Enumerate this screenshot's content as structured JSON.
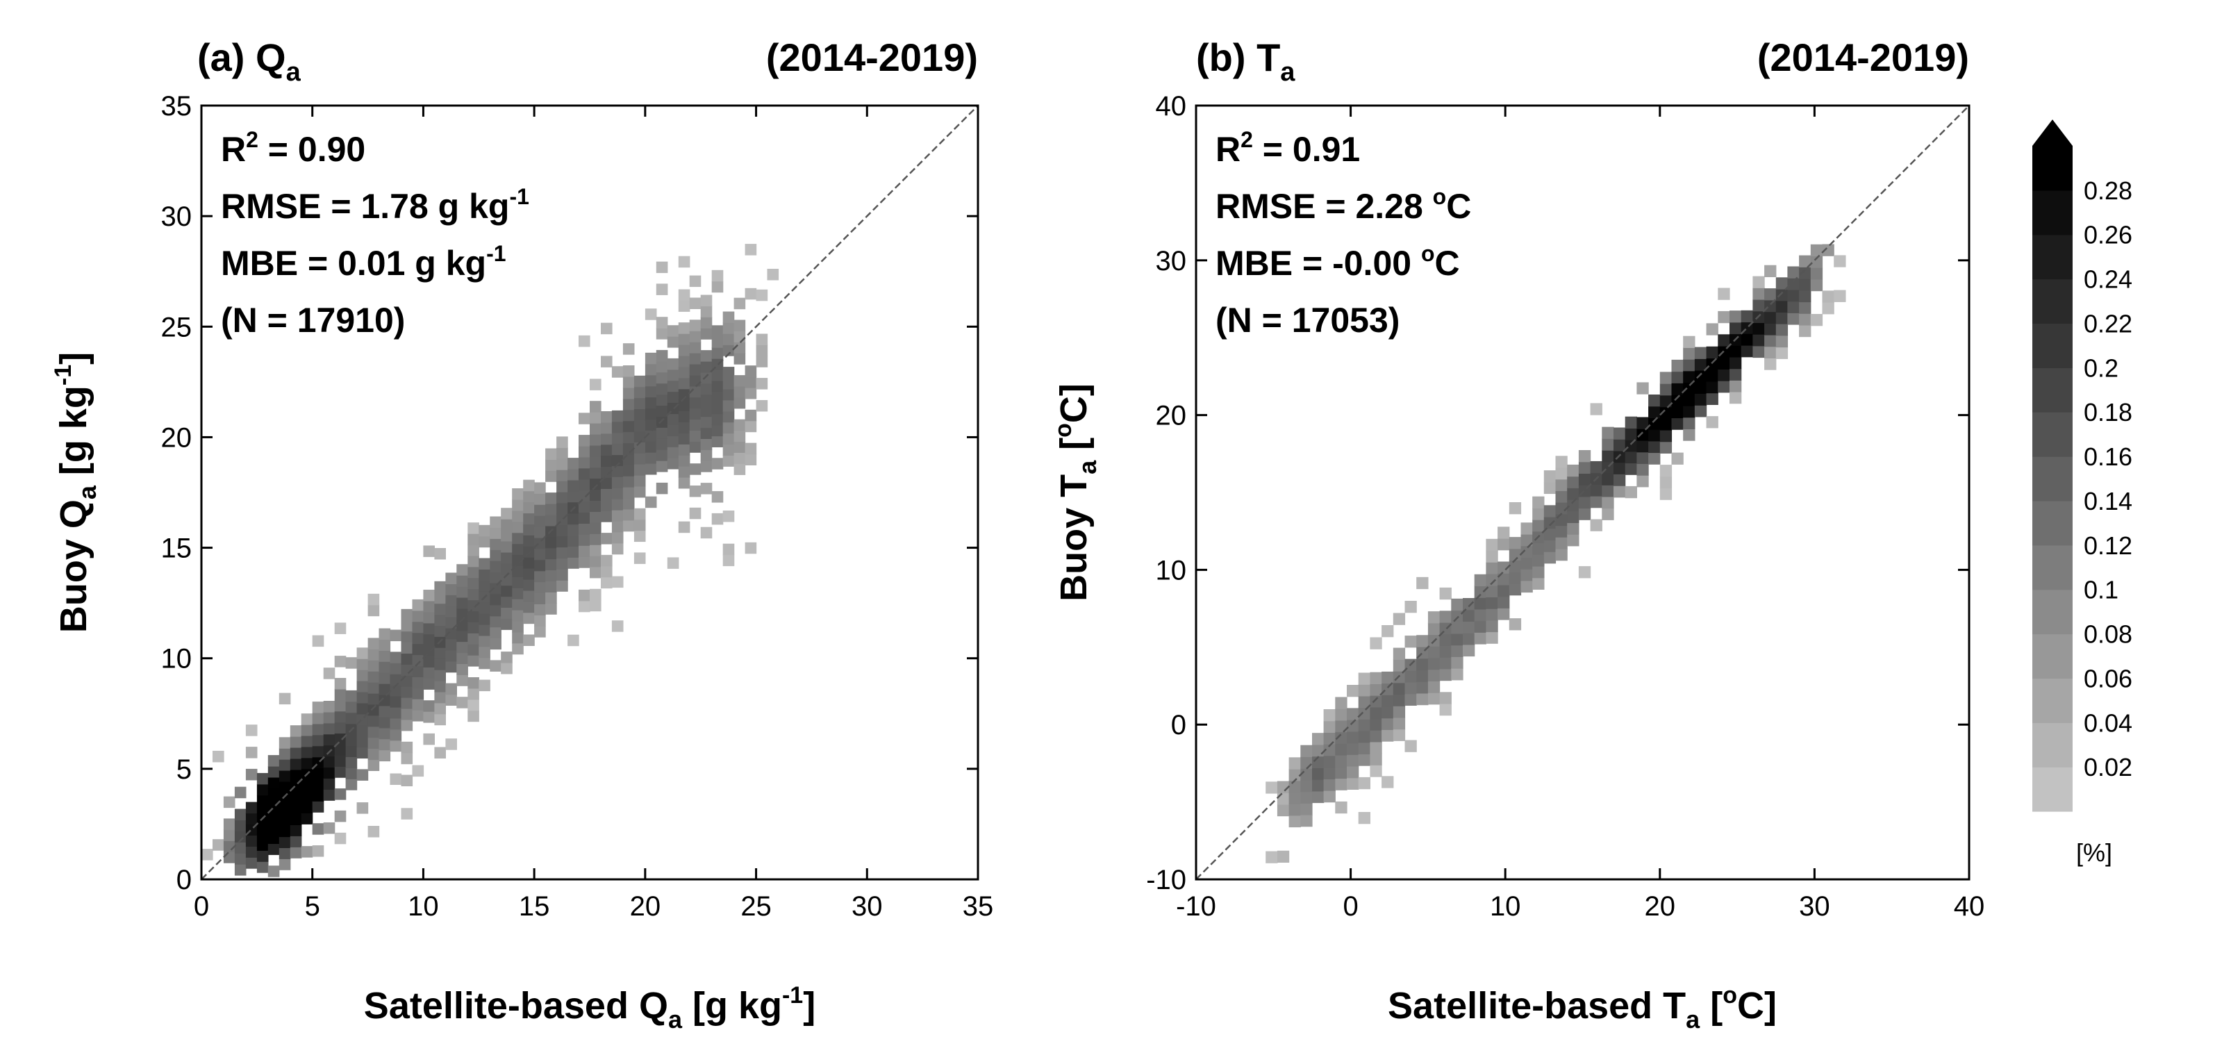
{
  "chart_data": [
    {
      "type": "heatmap",
      "panel": "(a) Q",
      "panel_sub": "a",
      "period": "(2014-2019)",
      "xlabel": "Satellite-based Q",
      "xlabel_sub": "a",
      "xlabel_unit": " [g kg",
      "xlabel_sup": "-1",
      "xlabel_close": "]",
      "ylabel": "Buoy Q",
      "ylabel_sub": "a",
      "ylabel_unit": " [g kg",
      "ylabel_sup": "-1",
      "ylabel_close": "]",
      "xlim": [
        0,
        35
      ],
      "ylim": [
        0,
        35
      ],
      "xticks": [
        "0",
        "5",
        "10",
        "15",
        "20",
        "25",
        "30",
        "35"
      ],
      "yticks": [
        "0",
        "5",
        "10",
        "15",
        "20",
        "25",
        "30",
        "35"
      ],
      "stats": {
        "r2_label": "R",
        "r2_sup": "2",
        "r2_value": " = 0.90",
        "rmse": "RMSE = 1.78 g kg",
        "rmse_sup": "-1",
        "mbe": "MBE = 0.01 g kg",
        "mbe_sup": "-1",
        "n": "(N = 17910)"
      },
      "one_to_one_line": true,
      "density": {
        "bin_width": 0.5,
        "peak": [
          3.5,
          3.0
        ],
        "ridge": [
          [
            1.5,
            1.5
          ],
          [
            3.5,
            3.0
          ],
          [
            6,
            6
          ],
          [
            10,
            10
          ],
          [
            15,
            14.5
          ],
          [
            20,
            20.5
          ],
          [
            24,
            22
          ]
        ],
        "max_percent": 0.3
      }
    },
    {
      "type": "heatmap",
      "panel": "(b) T",
      "panel_sub": "a",
      "period": "(2014-2019)",
      "xlabel": "Satellite-based T",
      "xlabel_sub": "a",
      "xlabel_unit": " [",
      "xlabel_sup": "o",
      "xlabel_close": "C]",
      "ylabel": "Buoy T",
      "ylabel_sub": "a",
      "ylabel_unit": " [",
      "ylabel_sup": "o",
      "ylabel_close": "C]",
      "xlim": [
        -10,
        40
      ],
      "ylim": [
        -10,
        40
      ],
      "xticks": [
        "-10",
        "0",
        "10",
        "20",
        "30",
        "40"
      ],
      "yticks": [
        "-10",
        "0",
        "10",
        "20",
        "30",
        "40"
      ],
      "stats": {
        "r2_label": "R",
        "r2_sup": "2",
        "r2_value": " = 0.91",
        "rmse": "RMSE = 2.28 ",
        "rmse_sup": "o",
        "rmse_tail": "C",
        "mbe": "MBE = -0.00 ",
        "mbe_sup": "o",
        "mbe_tail": "C",
        "n": "(N = 17053)"
      },
      "one_to_one_line": true,
      "density": {
        "bin_width": 0.75,
        "peak": [
          22,
          21.5
        ],
        "ridge": [
          [
            -4,
            -5
          ],
          [
            0,
            -1
          ],
          [
            5,
            4
          ],
          [
            10,
            9
          ],
          [
            15,
            15
          ],
          [
            20,
            19.5
          ],
          [
            25,
            24.5
          ],
          [
            30,
            29
          ]
        ],
        "max_percent": 0.24
      }
    }
  ],
  "colorbar": {
    "levels": [
      "0.02",
      "0.04",
      "0.06",
      "0.08",
      "0.1",
      "0.12",
      "0.14",
      "0.16",
      "0.18",
      "0.2",
      "0.22",
      "0.24",
      "0.26",
      "0.28"
    ],
    "unit": "[%]",
    "min_color": "#c2c2c2",
    "max_color": "#000000"
  }
}
